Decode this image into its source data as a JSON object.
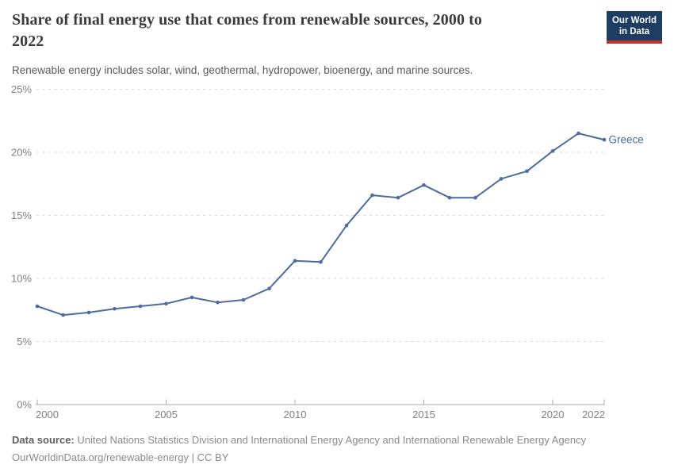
{
  "header": {
    "title_line1": "Share of final energy use that comes from renewable sources, 2000 to",
    "title_line2": "2022",
    "subtitle": "Renewable energy includes solar, wind, geothermal, hydropower, bioenergy, and marine sources.",
    "logo": {
      "line1": "Our World",
      "line2": "in Data"
    }
  },
  "chart_data": {
    "type": "line",
    "title": "Share of final energy use that comes from renewable sources, 2000 to 2022",
    "subtitle": "Renewable energy includes solar, wind, geothermal, hydropower, bioenergy, and marine sources.",
    "xlabel": "",
    "ylabel": "",
    "xlim": [
      2000,
      2022
    ],
    "ylim": [
      0,
      25
    ],
    "x_ticks": [
      2000,
      2005,
      2010,
      2015,
      2020,
      2022
    ],
    "y_ticks": [
      0,
      5,
      10,
      15,
      20,
      25
    ],
    "y_tick_suffix": "%",
    "grid": "horizontal-dashed",
    "legend_position": "end-of-line-label",
    "series": [
      {
        "name": "Greece",
        "color": "#4C6CA0",
        "x": [
          2000,
          2001,
          2002,
          2003,
          2004,
          2005,
          2006,
          2007,
          2008,
          2009,
          2010,
          2011,
          2012,
          2013,
          2014,
          2015,
          2016,
          2017,
          2018,
          2019,
          2020,
          2021,
          2022
        ],
        "values": [
          7.8,
          7.1,
          7.3,
          7.6,
          7.8,
          8.0,
          8.5,
          8.1,
          8.3,
          9.2,
          11.4,
          11.3,
          14.2,
          16.6,
          16.4,
          17.4,
          16.4,
          16.4,
          17.9,
          18.5,
          20.1,
          21.5,
          21.0
        ]
      }
    ]
  },
  "colors": {
    "grid": "#d9d9d9",
    "axis_line": "#a9a9a9",
    "axis_text": "#818181",
    "line": "#4C6CA0"
  },
  "footer": {
    "datasource_label": "Data source:",
    "datasource_text": " United Nations Statistics Division and International Energy Agency and International Renewable Energy Agency",
    "license_line": "OurWorldinData.org/renewable-energy | CC BY"
  }
}
